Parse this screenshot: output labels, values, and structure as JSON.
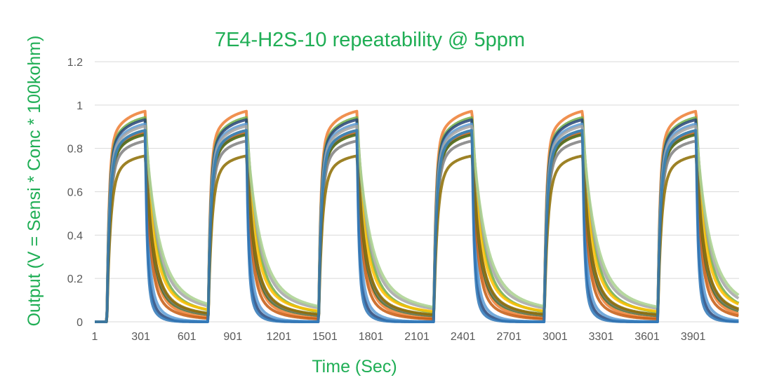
{
  "chart_data": {
    "type": "line",
    "title": "7E4-H2S-10 repeatability @ 5ppm",
    "xlabel": "Time (Sec)",
    "ylabel": "Output (V = Sensi * Conc * 100kohm)",
    "xlim": [
      1,
      4200
    ],
    "ylim": [
      0,
      1.2
    ],
    "x_ticks": [
      1,
      301,
      601,
      901,
      1201,
      1501,
      1801,
      2101,
      2401,
      2701,
      3001,
      3301,
      3601,
      3901
    ],
    "x_tick_labels": [
      "1",
      "301",
      "601",
      "901",
      "1201",
      "1501",
      "1801",
      "2101",
      "2401",
      "2701",
      "3001",
      "3301",
      "3601",
      "3901"
    ],
    "y_ticks": [
      0,
      0.2,
      0.4,
      0.6,
      0.8,
      1,
      1.2
    ],
    "y_tick_labels": [
      "0",
      "0.2",
      "0.4",
      "0.6",
      "0.8",
      "1",
      "1.2"
    ],
    "grid": true,
    "legend": "none",
    "cycles": [
      {
        "gas_on": 80,
        "gas_off": 330
      },
      {
        "gas_on": 740,
        "gas_off": 990
      },
      {
        "gas_on": 1460,
        "gas_off": 1710
      },
      {
        "gas_on": 2210,
        "gas_off": 2460
      },
      {
        "gas_on": 2930,
        "gas_off": 3180
      },
      {
        "gas_on": 3670,
        "gas_off": 3920
      }
    ],
    "series": [
      {
        "color": "#ed7d31",
        "plateau": 0.99,
        "recovery_baseline": 0.01,
        "recovery_tau": 35
      },
      {
        "color": "#70ad47",
        "plateau": 0.96,
        "recovery_baseline": 0.02,
        "recovery_tau": 60
      },
      {
        "color": "#264478",
        "plateau": 0.95,
        "recovery_baseline": 0.0,
        "recovery_tau": 15
      },
      {
        "color": "#5b9bd5",
        "plateau": 0.93,
        "recovery_baseline": 0.0,
        "recovery_tau": 20
      },
      {
        "color": "#a5a5a5",
        "plateau": 0.92,
        "recovery_baseline": 0.03,
        "recovery_tau": 70
      },
      {
        "color": "#ffc000",
        "plateau": 0.88,
        "recovery_baseline": 0.03,
        "recovery_tau": 55
      },
      {
        "color": "#c55a11",
        "plateau": 0.89,
        "recovery_baseline": 0.01,
        "recovery_tau": 30
      },
      {
        "color": "#43682b",
        "plateau": 0.88,
        "recovery_baseline": 0.02,
        "recovery_tau": 40
      },
      {
        "color": "#7f7f7f",
        "plateau": 0.85,
        "recovery_baseline": 0.02,
        "recovery_tau": 45
      },
      {
        "color": "#a9d18e",
        "plateau": 0.9,
        "recovery_baseline": 0.03,
        "recovery_tau": 80
      },
      {
        "color": "#8c6c00",
        "plateau": 0.78,
        "recovery_baseline": 0.02,
        "recovery_tau": 50
      },
      {
        "color": "#2e75b6",
        "plateau": 0.9,
        "recovery_baseline": 0.0,
        "recovery_tau": 12
      }
    ]
  }
}
